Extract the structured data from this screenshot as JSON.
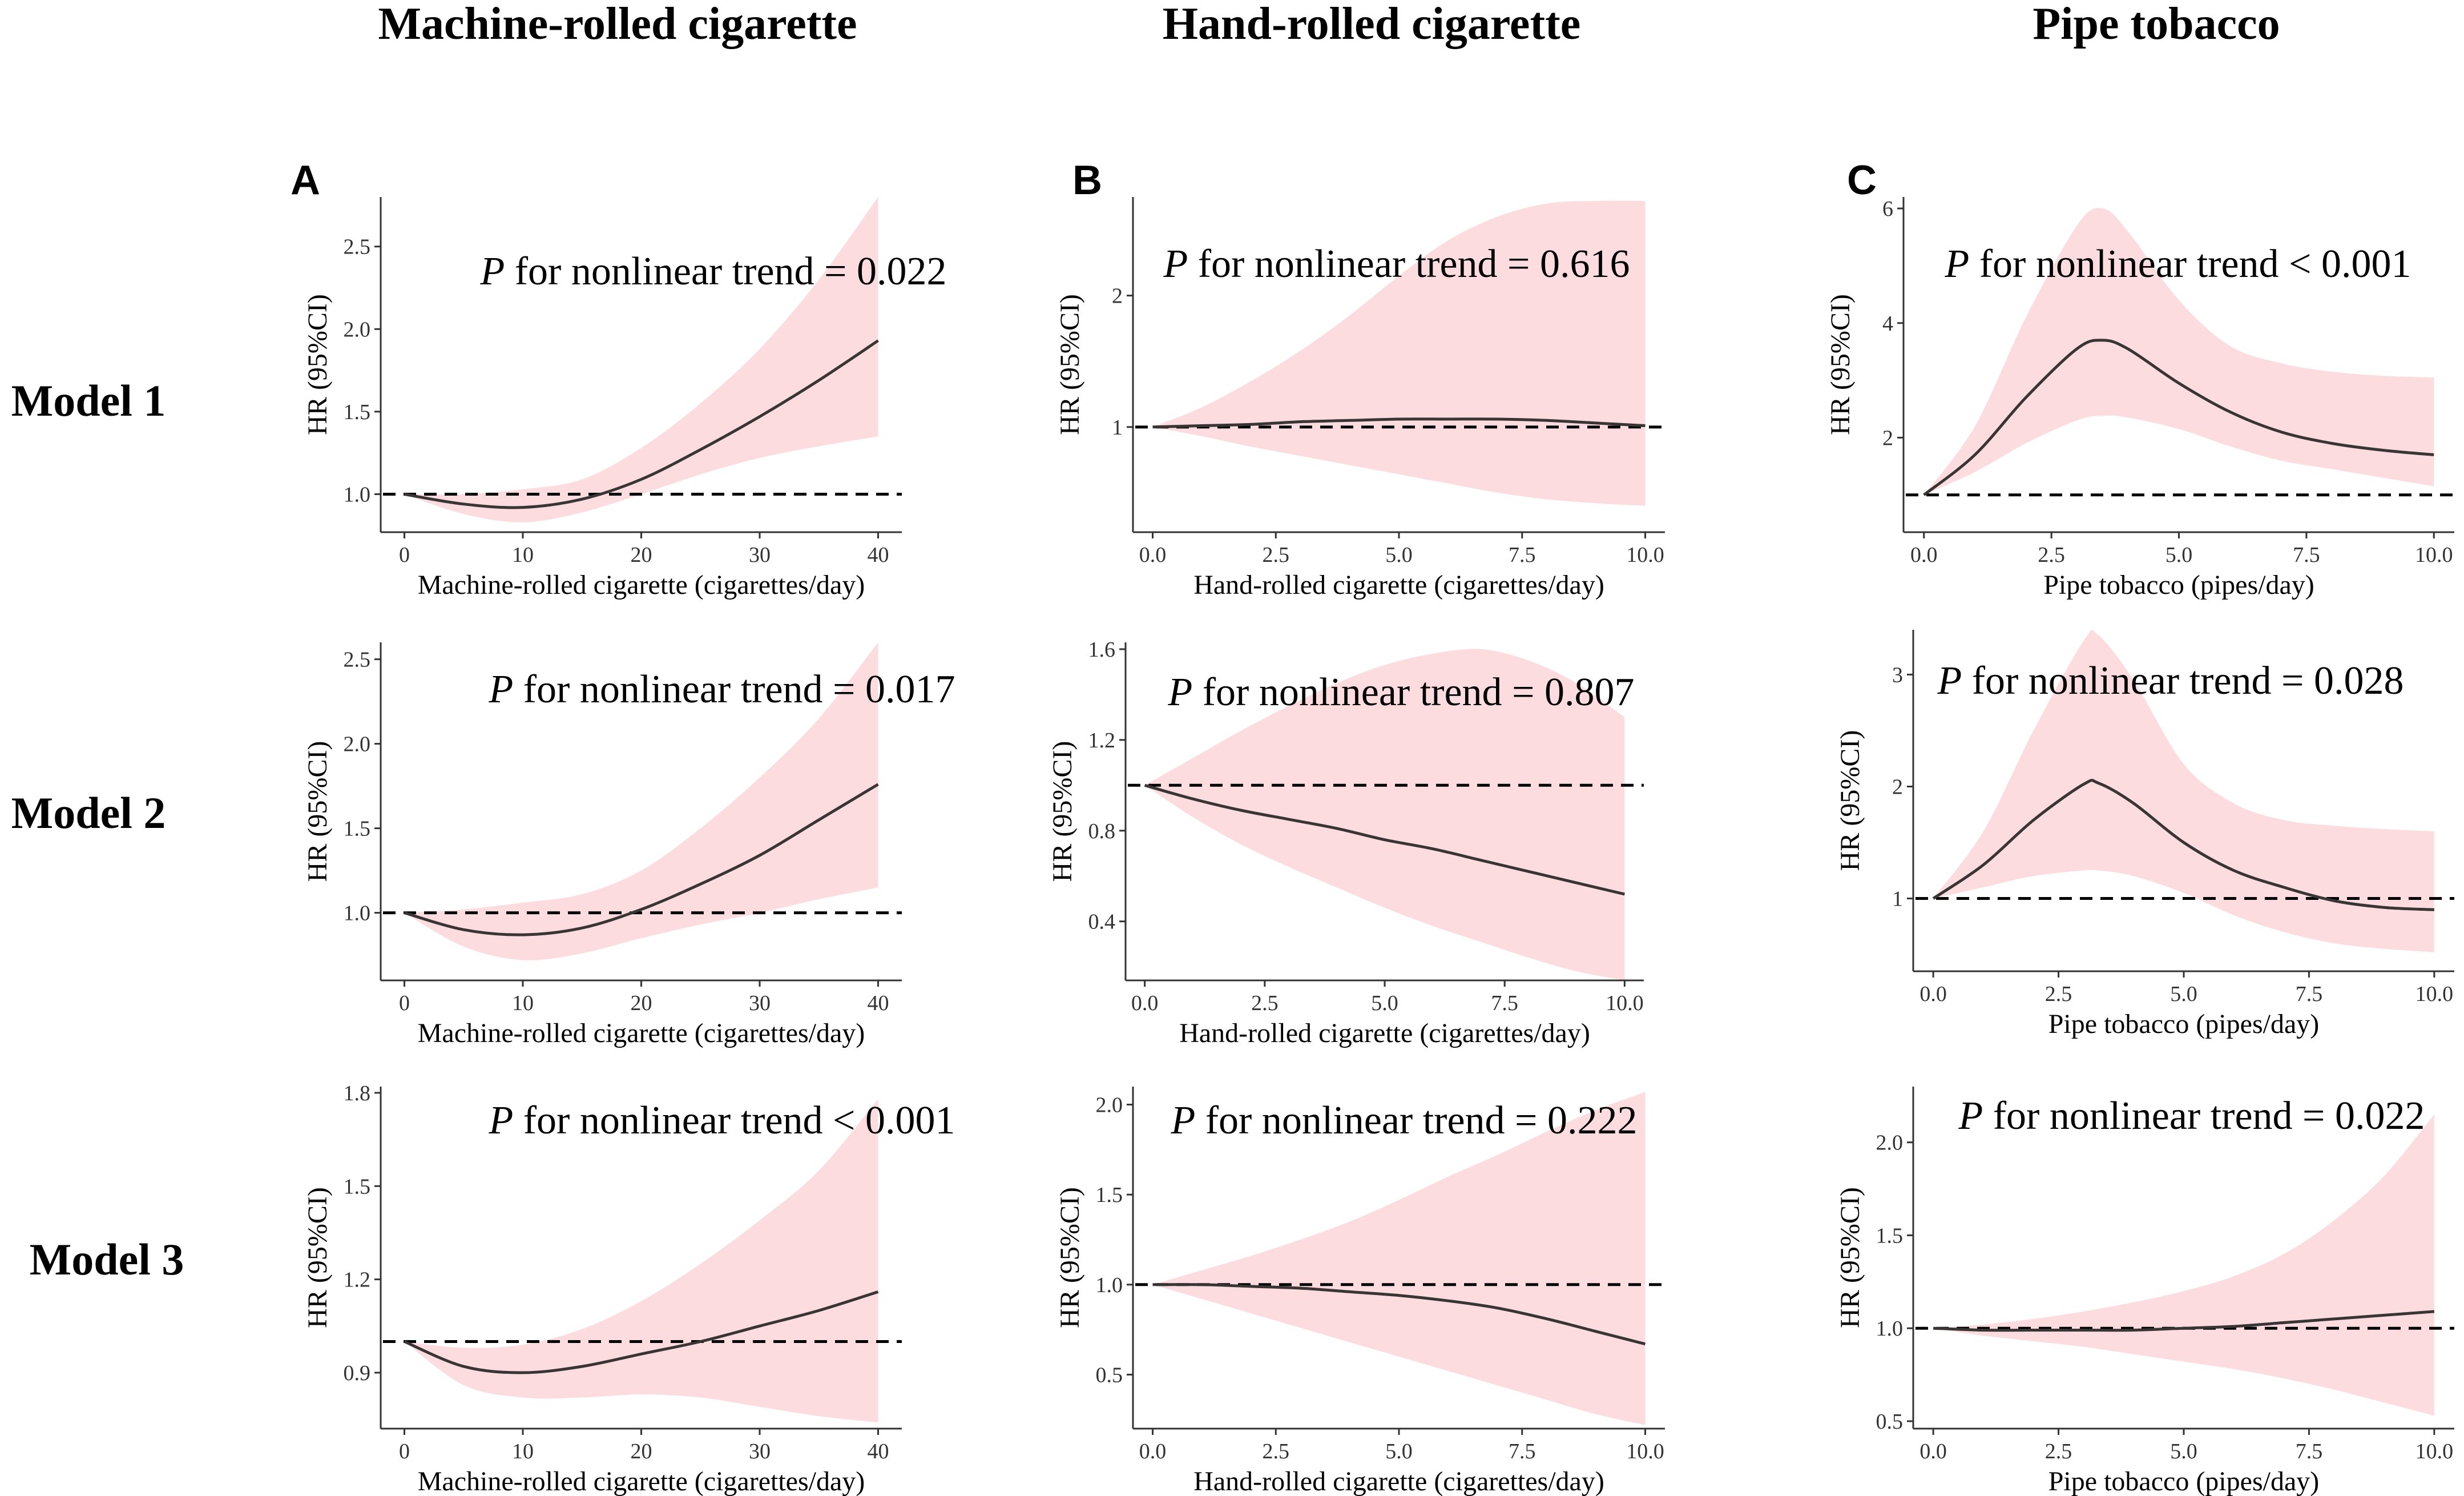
{
  "figure": {
    "column_titles": [
      "Machine-rolled cigarette",
      "Hand-rolled cigarette",
      "Pipe tobacco"
    ],
    "row_labels": [
      "Model 1",
      "Model 2",
      "Model 3"
    ],
    "panel_letters": [
      "A",
      "B",
      "C"
    ],
    "colors": {
      "ci_band": "#fddcdf",
      "curve": "#3a3535",
      "reference": "#000000",
      "axis": "#333333"
    }
  },
  "chart_data": [
    {
      "id": "A1",
      "type": "line",
      "model": "Model 1",
      "exposure": "Machine-rolled cigarette",
      "xlabel": "Machine-rolled cigarette (cigarettes/day)",
      "ylabel": "HR (95%CI)",
      "xlim": [
        -2,
        42
      ],
      "ylim": [
        0.77,
        2.8
      ],
      "xticks": [
        0,
        10,
        20,
        30,
        40
      ],
      "xtick_labels": [
        "0",
        "10",
        "20",
        "30",
        "40"
      ],
      "yticks": [
        1.0,
        1.5,
        2.0,
        2.5
      ],
      "ytick_labels": [
        "1.0",
        "1.5",
        "2.0",
        "2.5"
      ],
      "annotation_p": "P",
      "annotation_text": " for nonlinear trend = 0.022",
      "reference_hr": 1.0,
      "x": [
        0,
        5,
        10,
        15,
        20,
        25,
        30,
        35,
        40
      ],
      "hr": [
        1.0,
        0.94,
        0.92,
        0.97,
        1.09,
        1.27,
        1.47,
        1.69,
        1.93
      ],
      "lower": [
        1.0,
        0.88,
        0.83,
        0.89,
        1.0,
        1.12,
        1.22,
        1.29,
        1.35
      ],
      "upper": [
        1.0,
        1.0,
        1.03,
        1.09,
        1.28,
        1.55,
        1.88,
        2.3,
        2.8
      ]
    },
    {
      "id": "B1",
      "type": "line",
      "model": "Model 1",
      "exposure": "Hand-rolled cigarette",
      "xlabel": "Hand-rolled cigarette (cigarettes/day)",
      "ylabel": "HR (95%CI)",
      "xlim": [
        -0.4,
        10.4
      ],
      "ylim": [
        0.2,
        2.75
      ],
      "xticks": [
        0,
        2.5,
        5,
        7.5,
        10
      ],
      "xtick_labels": [
        "0.0",
        "2.5",
        "5.0",
        "7.5",
        "10.0"
      ],
      "yticks": [
        1,
        2
      ],
      "ytick_labels": [
        "1",
        "2"
      ],
      "annotation_p": "P",
      "annotation_text": " for nonlinear trend = 0.616",
      "reference_hr": 1.0,
      "x": [
        0,
        1,
        2,
        3,
        4,
        5,
        6,
        7,
        8,
        9,
        10
      ],
      "hr": [
        1.0,
        1.01,
        1.02,
        1.04,
        1.05,
        1.06,
        1.06,
        1.06,
        1.05,
        1.03,
        1.01
      ],
      "lower": [
        1.0,
        0.93,
        0.85,
        0.78,
        0.71,
        0.64,
        0.57,
        0.5,
        0.45,
        0.42,
        0.4
      ],
      "upper": [
        1.0,
        1.15,
        1.35,
        1.58,
        1.85,
        2.15,
        2.42,
        2.6,
        2.7,
        2.72,
        2.72
      ]
    },
    {
      "id": "C1",
      "type": "line",
      "model": "Model 1",
      "exposure": "Pipe tobacco",
      "xlabel": "Pipe tobacco (pipes/day)",
      "ylabel": "HR (95%CI)",
      "xlim": [
        -0.4,
        10.4
      ],
      "ylim": [
        0.35,
        6.2
      ],
      "xticks": [
        0,
        2.5,
        5,
        7.5,
        10
      ],
      "xtick_labels": [
        "0.0",
        "2.5",
        "5.0",
        "7.5",
        "10.0"
      ],
      "yticks": [
        2,
        4,
        6
      ],
      "ytick_labels": [
        "2",
        "4",
        "6"
      ],
      "annotation_p": "P",
      "annotation_text": " for nonlinear trend < 0.001",
      "reference_hr": 1.0,
      "x": [
        0,
        1,
        2,
        3,
        3.5,
        4,
        5,
        6,
        7,
        8,
        9,
        10
      ],
      "hr": [
        1.0,
        1.7,
        2.7,
        3.55,
        3.7,
        3.55,
        2.95,
        2.45,
        2.1,
        1.9,
        1.78,
        1.7
      ],
      "lower": [
        1.0,
        1.4,
        1.9,
        2.3,
        2.38,
        2.35,
        2.15,
        1.85,
        1.6,
        1.45,
        1.3,
        1.15
      ],
      "upper": [
        1.0,
        2.2,
        4.1,
        5.7,
        6.0,
        5.6,
        4.4,
        3.6,
        3.3,
        3.15,
        3.08,
        3.05
      ]
    },
    {
      "id": "A2",
      "type": "line",
      "model": "Model 2",
      "exposure": "Machine-rolled cigarette",
      "xlabel": "Machine-rolled cigarette (cigarettes/day)",
      "ylabel": "HR (95%CI)",
      "xlim": [
        -2,
        42
      ],
      "ylim": [
        0.6,
        2.6
      ],
      "xticks": [
        0,
        10,
        20,
        30,
        40
      ],
      "xtick_labels": [
        "0",
        "10",
        "20",
        "30",
        "40"
      ],
      "yticks": [
        1.0,
        1.5,
        2.0,
        2.5
      ],
      "ytick_labels": [
        "1.0",
        "1.5",
        "2.0",
        "2.5"
      ],
      "annotation_p": "P",
      "annotation_text": " for nonlinear trend = 0.017",
      "reference_hr": 1.0,
      "x": [
        0,
        5,
        10,
        15,
        20,
        25,
        30,
        35,
        40
      ],
      "hr": [
        1.0,
        0.9,
        0.87,
        0.91,
        1.02,
        1.17,
        1.34,
        1.55,
        1.76
      ],
      "lower": [
        1.0,
        0.8,
        0.72,
        0.76,
        0.85,
        0.93,
        1.0,
        1.08,
        1.15
      ],
      "upper": [
        1.0,
        1.02,
        1.06,
        1.11,
        1.25,
        1.5,
        1.8,
        2.15,
        2.6
      ]
    },
    {
      "id": "B2",
      "type": "line",
      "model": "Model 2",
      "exposure": "Hand-rolled cigarette",
      "xlabel": "Hand-rolled cigarette (cigarettes/day)",
      "ylabel": "HR (95%CI)",
      "xlim": [
        -0.4,
        10.4
      ],
      "ylim": [
        0.14,
        1.63
      ],
      "xticks": [
        0,
        2.5,
        5,
        7.5,
        10
      ],
      "xtick_labels": [
        "0.0",
        "2.5",
        "5.0",
        "7.5",
        "10.0"
      ],
      "yticks": [
        0.4,
        0.8,
        1.2,
        1.6
      ],
      "ytick_labels": [
        "0.4",
        "0.8",
        "1.2",
        "1.6"
      ],
      "annotation_p": "P",
      "annotation_text": " for nonlinear trend = 0.807",
      "reference_hr": 1.0,
      "x": [
        0,
        1,
        2,
        3,
        4,
        5,
        6,
        7,
        8,
        9,
        10
      ],
      "hr": [
        1.0,
        0.94,
        0.89,
        0.85,
        0.81,
        0.76,
        0.72,
        0.67,
        0.62,
        0.57,
        0.52
      ],
      "lower": [
        1.0,
        0.86,
        0.74,
        0.64,
        0.55,
        0.46,
        0.38,
        0.31,
        0.24,
        0.18,
        0.14
      ],
      "upper": [
        1.0,
        1.12,
        1.24,
        1.35,
        1.45,
        1.53,
        1.58,
        1.6,
        1.55,
        1.45,
        1.3
      ]
    },
    {
      "id": "C2",
      "type": "line",
      "model": "Model 2",
      "exposure": "Pipe tobacco",
      "xlabel": "Pipe tobacco (pipes/day)",
      "ylabel": "HR (95%CI)",
      "xlim": [
        -0.4,
        10.4
      ],
      "ylim": [
        0.35,
        3.4
      ],
      "xticks": [
        0,
        2.5,
        5,
        7.5,
        10
      ],
      "xtick_labels": [
        "0.0",
        "2.5",
        "5.0",
        "7.5",
        "10.0"
      ],
      "yticks": [
        1,
        2,
        3
      ],
      "ytick_labels": [
        "1",
        "2",
        "3"
      ],
      "annotation_p": "P",
      "annotation_text": " for nonlinear trend = 0.028",
      "reference_hr": 1.0,
      "x": [
        0,
        1,
        2,
        3,
        3.3,
        4,
        5,
        6,
        7,
        8,
        9,
        10
      ],
      "hr": [
        1.0,
        1.3,
        1.7,
        2.02,
        2.03,
        1.85,
        1.5,
        1.25,
        1.1,
        0.98,
        0.92,
        0.9
      ],
      "lower": [
        1.0,
        1.1,
        1.2,
        1.25,
        1.25,
        1.2,
        1.05,
        0.85,
        0.7,
        0.6,
        0.55,
        0.52
      ],
      "upper": [
        1.0,
        1.6,
        2.5,
        3.3,
        3.35,
        2.95,
        2.2,
        1.85,
        1.7,
        1.65,
        1.62,
        1.6
      ]
    },
    {
      "id": "A3",
      "type": "line",
      "model": "Model 3",
      "exposure": "Machine-rolled cigarette",
      "xlabel": "Machine-rolled cigarette (cigarettes/day)",
      "ylabel": "HR (95%CI)",
      "xlim": [
        -2,
        42
      ],
      "ylim": [
        0.72,
        1.82
      ],
      "xticks": [
        0,
        10,
        20,
        30,
        40
      ],
      "xtick_labels": [
        "0",
        "10",
        "20",
        "30",
        "40"
      ],
      "yticks": [
        0.9,
        1.2,
        1.5,
        1.8
      ],
      "ytick_labels": [
        "0.9",
        "1.2",
        "1.5",
        "1.8"
      ],
      "annotation_p": "P",
      "annotation_text": " for nonlinear trend < 0.001",
      "reference_hr": 1.0,
      "x": [
        0,
        5,
        10,
        15,
        20,
        25,
        30,
        35,
        40
      ],
      "hr": [
        1.0,
        0.92,
        0.9,
        0.92,
        0.96,
        1.0,
        1.05,
        1.1,
        1.16
      ],
      "lower": [
        1.0,
        0.86,
        0.82,
        0.82,
        0.83,
        0.82,
        0.79,
        0.76,
        0.74
      ],
      "upper": [
        1.0,
        0.98,
        0.99,
        1.04,
        1.13,
        1.25,
        1.39,
        1.55,
        1.78
      ]
    },
    {
      "id": "B3",
      "type": "line",
      "model": "Model 3",
      "exposure": "Hand-rolled cigarette",
      "xlabel": "Hand-rolled cigarette (cigarettes/day)",
      "ylabel": "HR (95%CI)",
      "xlim": [
        -0.4,
        10.4
      ],
      "ylim": [
        0.2,
        2.1
      ],
      "xticks": [
        0,
        2.5,
        5,
        7.5,
        10
      ],
      "xtick_labels": [
        "0.0",
        "2.5",
        "5.0",
        "7.5",
        "10.0"
      ],
      "yticks": [
        0.5,
        1.0,
        1.5,
        2.0
      ],
      "ytick_labels": [
        "0.5",
        "1.0",
        "1.5",
        "2.0"
      ],
      "annotation_p": "P",
      "annotation_text": " for nonlinear trend = 0.222",
      "reference_hr": 1.0,
      "x": [
        0,
        1,
        2,
        3,
        4,
        5,
        6,
        7,
        8,
        9,
        10
      ],
      "hr": [
        1.0,
        1.0,
        0.99,
        0.98,
        0.96,
        0.94,
        0.91,
        0.87,
        0.81,
        0.74,
        0.67
      ],
      "lower": [
        1.0,
        0.92,
        0.84,
        0.76,
        0.68,
        0.6,
        0.52,
        0.44,
        0.36,
        0.28,
        0.22
      ],
      "upper": [
        1.0,
        1.08,
        1.16,
        1.25,
        1.35,
        1.47,
        1.6,
        1.72,
        1.85,
        1.97,
        2.07
      ]
    },
    {
      "id": "C3",
      "type": "line",
      "model": "Model 3",
      "exposure": "Pipe tobacco",
      "xlabel": "Pipe tobacco (pipes/day)",
      "ylabel": "HR (95%CI)",
      "xlim": [
        -0.4,
        10.4
      ],
      "ylim": [
        0.46,
        2.3
      ],
      "xticks": [
        0,
        2.5,
        5,
        7.5,
        10
      ],
      "xtick_labels": [
        "0.0",
        "2.5",
        "5.0",
        "7.5",
        "10.0"
      ],
      "yticks": [
        0.5,
        1.0,
        1.5,
        2.0
      ],
      "ytick_labels": [
        "0.5",
        "1.0",
        "1.5",
        "2.0"
      ],
      "annotation_p": "P",
      "annotation_text": " for nonlinear trend = 0.022",
      "reference_hr": 1.0,
      "x": [
        0,
        1,
        2,
        3,
        4,
        5,
        6,
        7,
        8,
        9,
        10
      ],
      "hr": [
        1.0,
        0.99,
        0.99,
        0.99,
        0.99,
        1.0,
        1.01,
        1.03,
        1.05,
        1.07,
        1.09
      ],
      "lower": [
        1.0,
        0.96,
        0.93,
        0.9,
        0.86,
        0.82,
        0.78,
        0.73,
        0.67,
        0.6,
        0.53
      ],
      "upper": [
        1.0,
        1.02,
        1.05,
        1.09,
        1.14,
        1.2,
        1.28,
        1.4,
        1.58,
        1.82,
        2.15
      ]
    }
  ]
}
